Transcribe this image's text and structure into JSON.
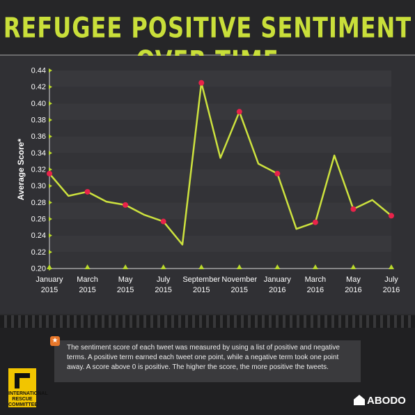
{
  "header": {
    "title": "REFUGEE POSITIVE SENTIMENT OVER TIME"
  },
  "chart_data": {
    "type": "line",
    "title": "REFUGEE POSITIVE SENTIMENT OVER TIME",
    "ylabel": "Average Score*",
    "xlabel": "",
    "ylim": [
      0.2,
      0.44
    ],
    "yticks": [
      "0.20",
      "0.22",
      "0.24",
      "0.26",
      "0.28",
      "0.30",
      "0.32",
      "0.34",
      "0.36",
      "0.38",
      "0.40",
      "0.42",
      "0.44"
    ],
    "xticks": [
      {
        "month": "January",
        "year": "2015"
      },
      {
        "month": "March",
        "year": "2015"
      },
      {
        "month": "May",
        "year": "2015"
      },
      {
        "month": "July",
        "year": "2015"
      },
      {
        "month": "September",
        "year": "2015"
      },
      {
        "month": "November",
        "year": "2015"
      },
      {
        "month": "January",
        "year": "2016"
      },
      {
        "month": "March",
        "year": "2016"
      },
      {
        "month": "May",
        "year": "2016"
      },
      {
        "month": "July",
        "year": "2016"
      }
    ],
    "x": [
      "2015-01",
      "2015-02",
      "2015-03",
      "2015-04",
      "2015-05",
      "2015-06",
      "2015-07",
      "2015-08",
      "2015-09",
      "2015-10",
      "2015-11",
      "2015-12",
      "2016-01",
      "2016-02",
      "2016-03",
      "2016-04",
      "2016-05",
      "2016-06",
      "2016-07"
    ],
    "series": [
      {
        "values": [
          0.315,
          0.288,
          0.293,
          0.281,
          0.277,
          0.265,
          0.257,
          0.229,
          0.425,
          0.334,
          0.39,
          0.327,
          0.315,
          0.248,
          0.256,
          0.337,
          0.272,
          0.283,
          0.264
        ],
        "marked": [
          true,
          false,
          true,
          false,
          true,
          false,
          true,
          false,
          true,
          false,
          true,
          false,
          true,
          false,
          true,
          false,
          true,
          false,
          true
        ]
      }
    ],
    "grid": true,
    "line_color": "#cde23e",
    "marker_color": "#e8234a",
    "tick_marker_color": "#b9d82c"
  },
  "footer": {
    "note": "The sentiment score of each tweet was measured by using a list of positive and negative terms. A positive term earned each tweet one point, while a negative term took one point away. A score above 0 is positive. The higher the score, the more positive the tweets.",
    "note_icon": "star-icon",
    "irc_logo_text": "INTERNATIONAL RESCUE COMMITTEE",
    "brand": "ABODO"
  }
}
